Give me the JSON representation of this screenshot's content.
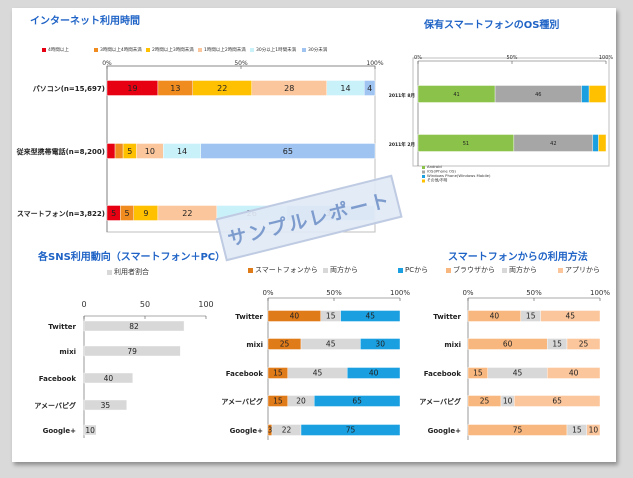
{
  "watermark": "サンプルレポート",
  "colors": {
    "c_red": "#e60012",
    "c_orange": "#f08c1f",
    "c_yellow": "#ffc000",
    "c_peach": "#fbc69c",
    "c_cyan": "#c9f1fa",
    "c_blue": "#9fc4f2",
    "c_green": "#8bc34a",
    "c_gray": "#a6a6a6",
    "c_sky": "#1aa0e0",
    "c_lgray": "#d8d8d8",
    "c_dorange": "#e07b1a",
    "c_lorange": "#f8b77e"
  },
  "chart_data": [
    {
      "id": "usage",
      "type": "bar",
      "stacked": "100%",
      "orientation": "horizontal",
      "title": "インターネット利用時間",
      "categories": [
        "パソコン(n=15,697)",
        "従来型携帯電話(n=8,200)",
        "スマートフォン(n=3,822)"
      ],
      "series": [
        {
          "name": "4時間以上",
          "values": [
            19,
            3,
            5
          ],
          "color": "c_red"
        },
        {
          "name": "3時間以上4時間未満",
          "values": [
            13,
            3,
            5
          ],
          "color": "c_orange"
        },
        {
          "name": "2時間以上3時間未満",
          "values": [
            22,
            5,
            9
          ],
          "color": "c_yellow"
        },
        {
          "name": "1時間以上2時間未満",
          "values": [
            28,
            10,
            22
          ],
          "color": "c_peach"
        },
        {
          "name": "30分以上1時間未満",
          "values": [
            14,
            14,
            26
          ],
          "color": "c_cyan"
        },
        {
          "name": "30分未満",
          "values": [
            4,
            65,
            33
          ],
          "color": "c_blue"
        }
      ],
      "ticks": [
        "0%",
        "50%",
        "100%"
      ],
      "xlim": [
        0,
        100
      ],
      "legend": "top"
    },
    {
      "id": "os",
      "type": "bar",
      "stacked": "100%",
      "orientation": "horizontal",
      "title": "保有スマートフォンのOS種別",
      "categories": [
        "2011年 8月",
        "2011年 2月"
      ],
      "series": [
        {
          "name": "Android",
          "values": [
            41,
            51
          ],
          "color": "c_green"
        },
        {
          "name": "iOS(iPhone OS)",
          "values": [
            46,
            42
          ],
          "color": "c_gray"
        },
        {
          "name": "Windows Phone(Windows Mobile)",
          "values": [
            4,
            3
          ],
          "color": "c_sky"
        },
        {
          "name": "その他/不明",
          "values": [
            9,
            4
          ],
          "color": "c_yellow"
        }
      ],
      "ticks": [
        "0%",
        "50%",
        "100%"
      ],
      "xlim": [
        0,
        100
      ],
      "legend": "bottom"
    },
    {
      "id": "sns",
      "type": "bar",
      "orientation": "horizontal",
      "title": "各SNS利用動向（スマートフォン＋PC）",
      "categories": [
        "Twitter",
        "mixi",
        "Facebook",
        "アメーバピグ",
        "Google+"
      ],
      "series": [
        {
          "name": "利用者割合",
          "values": [
            82,
            79,
            40,
            35,
            10
          ],
          "color": "c_lgray"
        }
      ],
      "ticks": [
        "0",
        "50",
        "100"
      ],
      "xlim": [
        0,
        100
      ],
      "legend": "top"
    },
    {
      "id": "device",
      "type": "bar",
      "stacked": "100%",
      "orientation": "horizontal",
      "title": "",
      "categories": [
        "Twitter",
        "mixi",
        "Facebook",
        "アメーバピグ",
        "Google+"
      ],
      "series": [
        {
          "name": "スマートフォンから",
          "values": [
            40,
            25,
            15,
            15,
            3
          ],
          "color": "c_dorange"
        },
        {
          "name": "両方から",
          "values": [
            15,
            45,
            45,
            20,
            22
          ],
          "color": "c_lgray"
        },
        {
          "name": "PCから",
          "values": [
            45,
            30,
            40,
            65,
            75
          ],
          "color": "c_sky"
        }
      ],
      "ticks": [
        "0%",
        "50%",
        "100%"
      ],
      "xlim": [
        0,
        100
      ],
      "legend": "top"
    },
    {
      "id": "method",
      "type": "bar",
      "stacked": "100%",
      "orientation": "horizontal",
      "title": "スマートフォンからの利用方法",
      "categories": [
        "Twitter",
        "mixi",
        "Facebook",
        "アメーバピグ",
        "Google+"
      ],
      "series": [
        {
          "name": "ブラウザから",
          "values": [
            40,
            60,
            15,
            25,
            75
          ],
          "color": "c_lorange"
        },
        {
          "name": "両方から",
          "values": [
            15,
            15,
            45,
            10,
            15
          ],
          "color": "c_lgray"
        },
        {
          "name": "アプリから",
          "values": [
            45,
            25,
            40,
            65,
            10
          ],
          "color": "c_peach"
        }
      ],
      "ticks": [
        "0%",
        "50%",
        "100%"
      ],
      "xlim": [
        0,
        100
      ],
      "legend": "top"
    }
  ]
}
